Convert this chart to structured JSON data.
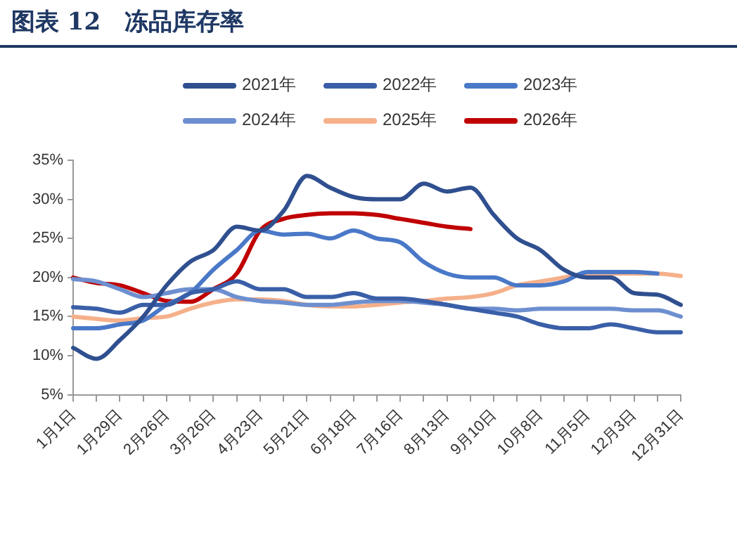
{
  "chart_data": {
    "type": "line",
    "title": "图表 12　冻品库存率",
    "categories": [
      "1月1日",
      null,
      "1月29日",
      null,
      "2月26日",
      null,
      "3月26日",
      null,
      "4月23日",
      null,
      "5月21日",
      null,
      "6月18日",
      null,
      "7月16日",
      null,
      "8月13日",
      null,
      "9月10日",
      null,
      "10月8日",
      null,
      "11月5日",
      null,
      "12月3日",
      null,
      "12月31日"
    ],
    "ylim": [
      5,
      35
    ],
    "yticks": [
      {
        "value": 5,
        "label": "5%"
      },
      {
        "value": 10,
        "label": "10%"
      },
      {
        "value": 15,
        "label": "15%"
      },
      {
        "value": 20,
        "label": "20%"
      },
      {
        "value": 25,
        "label": "25%"
      },
      {
        "value": 30,
        "label": "30%"
      },
      {
        "value": 35,
        "label": "35%"
      }
    ],
    "grid": false,
    "legend": "top",
    "marker": "none",
    "line_style": "solid",
    "series": [
      {
        "name": "2021年",
        "color": "#2f4f8f",
        "values": [
          11,
          9.6,
          12,
          15,
          19,
          22,
          23.5,
          26.5,
          26,
          28.5,
          33,
          31.5,
          30.3,
          30,
          30,
          32,
          31,
          31.5,
          28,
          25,
          23.5,
          21,
          20,
          20,
          18,
          17.8,
          16.5
        ]
      },
      {
        "name": "2022年",
        "color": "#3a5fa8",
        "values": [
          16.2,
          16,
          15.5,
          16.5,
          16.5,
          18,
          18.5,
          19.5,
          18.5,
          18.5,
          17.5,
          17.5,
          18,
          17.3,
          17.3,
          17,
          16.5,
          16,
          15.5,
          15,
          14,
          13.5,
          13.5,
          14,
          13.5,
          13,
          13
        ]
      },
      {
        "name": "2023年",
        "color": "#4a78c8",
        "values": [
          13.5,
          13.5,
          14,
          14.5,
          16.5,
          18,
          21,
          23.5,
          26,
          25.5,
          25.6,
          25,
          26,
          25,
          24.5,
          22,
          20.5,
          20,
          20,
          19,
          19,
          19.5,
          20.7,
          20.7,
          20.7,
          20.5,
          null
        ]
      },
      {
        "name": "2024年",
        "color": "#6d8fd0",
        "values": [
          19.8,
          19.5,
          18.5,
          17.5,
          18,
          18.5,
          18.5,
          17.5,
          17,
          16.8,
          16.5,
          16.5,
          16.8,
          17,
          17,
          16.8,
          16.5,
          16,
          16,
          15.8,
          16,
          16,
          16,
          16,
          15.8,
          15.8,
          15
        ]
      },
      {
        "name": "2025年",
        "color": "#f5b08a",
        "values": [
          15,
          14.7,
          14.5,
          14.8,
          15,
          16,
          16.8,
          17.2,
          17.2,
          17,
          16.5,
          16.3,
          16.3,
          16.5,
          16.8,
          17,
          17.3,
          17.5,
          18,
          19,
          19.5,
          20,
          20.5,
          20.5,
          20.5,
          20.5,
          20.2
        ]
      },
      {
        "name": "2026年",
        "color": "#c00000",
        "values": [
          20,
          19.3,
          19,
          18,
          17,
          16.9,
          18.5,
          20.5,
          26,
          27.5,
          28,
          28.2,
          28.2,
          28,
          27.5,
          27,
          26.5,
          26.2,
          null,
          null,
          null,
          null,
          null,
          null,
          null,
          null,
          null
        ]
      }
    ]
  }
}
